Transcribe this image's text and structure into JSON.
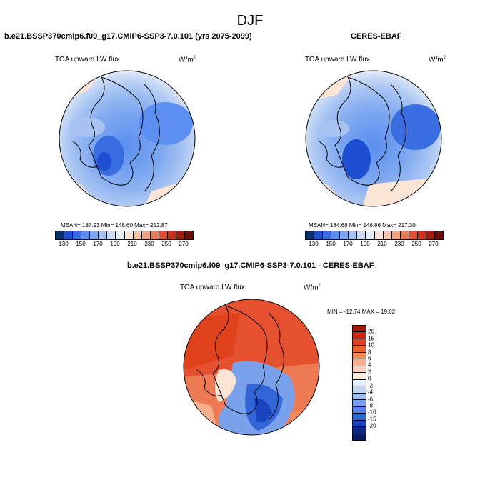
{
  "season": "DJF",
  "panels": [
    {
      "title": "b.e21.BSSP370cmip6.f09_g17.CMIP6-SSP3-7.0.101 (yrs 2075-2099)",
      "variable": "TOA upward LW flux",
      "units_base": "W/m",
      "units_exp": "2",
      "stats": "MEAN= 187.93  Min= 148.60  Max= 212.87"
    },
    {
      "title": "CERES-EBAF",
      "variable": "TOA upward LW flux",
      "units_base": "W/m",
      "units_exp": "2",
      "stats": "MEAN= 184.68  Min= 146.86  Max= 217.30"
    },
    {
      "title": "b.e21.BSSP370cmip6.f09_g17.CMIP6-SSP3-7.0.101 - CERES-EBAF",
      "variable": "TOA upward LW flux",
      "units_base": "W/m",
      "units_exp": "2",
      "stats": "MIN = -12.74 MAX =  19.62"
    }
  ],
  "colorbar_abs": {
    "colors": [
      "#08306b",
      "#1f4fd1",
      "#3a6ee0",
      "#5b8ff0",
      "#7da7f0",
      "#a6c3f2",
      "#ccdcf6",
      "#e8effc",
      "#fde5d6",
      "#f7c6a8",
      "#f3a27e",
      "#ee7b54",
      "#e5512f",
      "#cc3016",
      "#a11b0b",
      "#6e0a04"
    ],
    "labels": [
      "130",
      "150",
      "170",
      "190",
      "210",
      "230",
      "250",
      "270"
    ]
  },
  "colorbar_diff": {
    "colors": [
      "#9c1a0c",
      "#c8280f",
      "#e0421c",
      "#ef6031",
      "#f78a5d",
      "#f9ae8c",
      "#fbd1bb",
      "#fdebe0",
      "#e5eefb",
      "#c3d6f4",
      "#9fbdef",
      "#7aa2ec",
      "#5584e6",
      "#3265d8",
      "#1a44bf",
      "#0a2788",
      "#061763"
    ],
    "labels": [
      "20",
      "15",
      "10",
      "8",
      "6",
      "4",
      "2",
      "0",
      "-2",
      "-4",
      "-6",
      "-8",
      "-10",
      "-15",
      "-20"
    ]
  },
  "chart_data": [
    {
      "type": "heatmap",
      "title": "b.e21.BSSP370cmip6.f09_g17.CMIP6-SSP3-7.0.101 (yrs 2075-2099)",
      "variable": "TOA upward LW flux",
      "units": "W/m2",
      "projection": "north-polar-stereographic",
      "mean": 187.93,
      "min": 148.6,
      "max": 212.87,
      "colorbar_ticks": [
        130,
        150,
        170,
        190,
        210,
        230,
        250,
        270
      ]
    },
    {
      "type": "heatmap",
      "title": "CERES-EBAF",
      "variable": "TOA upward LW flux",
      "units": "W/m2",
      "projection": "north-polar-stereographic",
      "mean": 184.68,
      "min": 146.86,
      "max": 217.3,
      "colorbar_ticks": [
        130,
        150,
        170,
        190,
        210,
        230,
        250,
        270
      ]
    },
    {
      "type": "heatmap",
      "title": "b.e21.BSSP370cmip6.f09_g17.CMIP6-SSP3-7.0.101 - CERES-EBAF",
      "variable": "TOA upward LW flux",
      "units": "W/m2",
      "projection": "north-polar-stereographic",
      "min": -12.74,
      "max": 19.62,
      "colorbar_ticks": [
        20,
        15,
        10,
        8,
        6,
        4,
        2,
        0,
        -2,
        -4,
        -6,
        -8,
        -10,
        -15,
        -20
      ]
    }
  ]
}
